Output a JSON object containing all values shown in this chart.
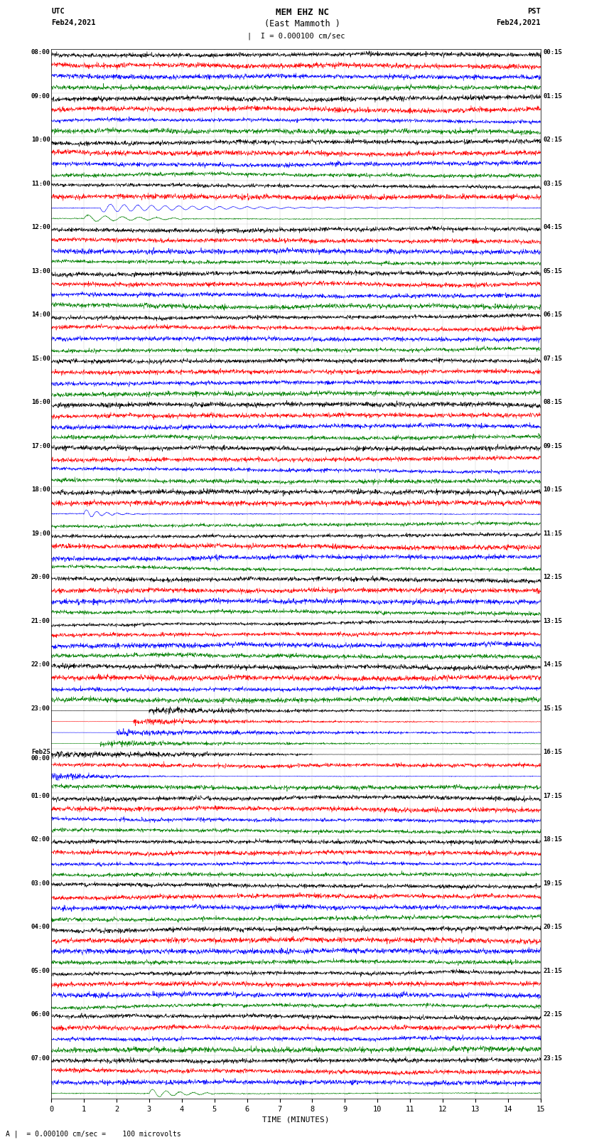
{
  "title_line1": "MEM EHZ NC",
  "title_line2": "(East Mammoth )",
  "scale_label": "I = 0.000100 cm/sec",
  "bottom_label": "A |  = 0.000100 cm/sec =    100 microvolts",
  "xlabel": "TIME (MINUTES)",
  "utc_label1": "UTC",
  "utc_label2": "Feb24,2021",
  "pst_label1": "PST",
  "pst_label2": "Feb24,2021",
  "left_times": [
    "08:00",
    "09:00",
    "10:00",
    "11:00",
    "12:00",
    "13:00",
    "14:00",
    "15:00",
    "16:00",
    "17:00",
    "18:00",
    "19:00",
    "20:00",
    "21:00",
    "22:00",
    "23:00",
    "Feb25\n00:00",
    "01:00",
    "02:00",
    "03:00",
    "04:00",
    "05:00",
    "06:00",
    "07:00"
  ],
  "right_times": [
    "00:15",
    "01:15",
    "02:15",
    "03:15",
    "04:15",
    "05:15",
    "06:15",
    "07:15",
    "08:15",
    "09:15",
    "10:15",
    "11:15",
    "12:15",
    "13:15",
    "14:15",
    "15:15",
    "16:15",
    "17:15",
    "18:15",
    "19:15",
    "20:15",
    "21:15",
    "22:15",
    "23:15"
  ],
  "n_hours": 24,
  "n_traces_per_hour": 4,
  "colors": [
    "black",
    "red",
    "blue",
    "green"
  ],
  "x_min": 0,
  "x_max": 15,
  "x_ticks": [
    0,
    1,
    2,
    3,
    4,
    5,
    6,
    7,
    8,
    9,
    10,
    11,
    12,
    13,
    14,
    15
  ],
  "bg_color": "white",
  "fig_width": 8.5,
  "fig_height": 16.13,
  "dpi": 100
}
